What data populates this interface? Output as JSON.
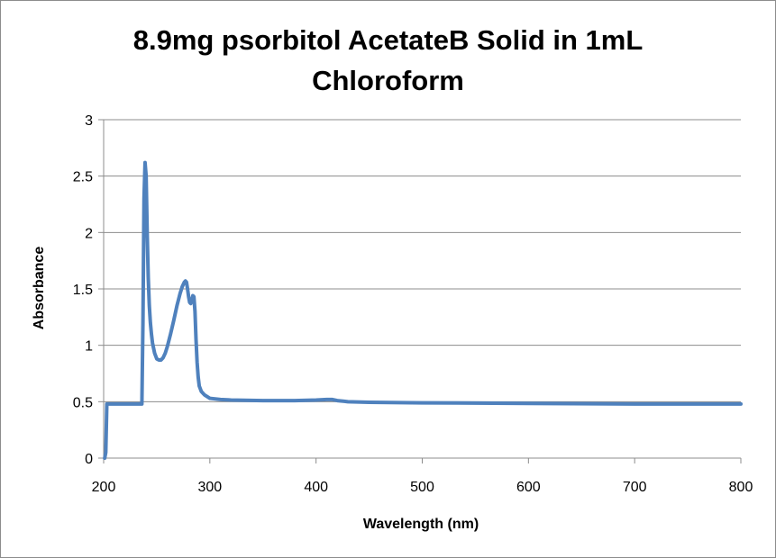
{
  "chart_data": {
    "type": "line",
    "title_line1": "8.9mg psorbitol AcetateB Solid in 1mL",
    "title_line2": "Chloroform",
    "xlabel": "Wavelength (nm)",
    "ylabel": "Absorbance",
    "xlim": [
      200,
      800
    ],
    "ylim": [
      0,
      3
    ],
    "x_ticks": [
      200,
      300,
      400,
      500,
      600,
      700,
      800
    ],
    "y_ticks": [
      0,
      0.5,
      1,
      1.5,
      2,
      2.5,
      3
    ],
    "y_tick_labels": [
      "0",
      "0.5",
      "1",
      "1.5",
      "2",
      "2.5",
      "3"
    ],
    "grid": "horizontal",
    "legend": "none",
    "series_color": "#4f81bd",
    "series": [
      {
        "x": [
          201,
          202,
          203,
          210,
          220,
          230,
          235,
          236,
          237,
          238,
          239,
          240,
          241,
          242,
          243,
          244,
          245,
          246,
          248,
          250,
          252,
          254,
          256,
          258,
          260,
          263,
          266,
          269,
          272,
          274,
          276,
          277,
          278,
          279,
          280,
          281,
          282,
          283,
          284,
          285,
          286,
          287,
          288,
          289,
          290,
          292,
          295,
          300,
          310,
          320,
          350,
          380,
          400,
          410,
          415,
          420,
          430,
          450,
          500,
          600,
          700,
          800
        ],
        "y": [
          0.0,
          0.05,
          0.48,
          0.48,
          0.48,
          0.48,
          0.48,
          0.48,
          1.2,
          2.3,
          2.62,
          2.5,
          2.0,
          1.6,
          1.35,
          1.2,
          1.1,
          1.02,
          0.93,
          0.88,
          0.87,
          0.87,
          0.89,
          0.93,
          0.99,
          1.1,
          1.22,
          1.35,
          1.46,
          1.52,
          1.56,
          1.57,
          1.56,
          1.5,
          1.43,
          1.38,
          1.37,
          1.4,
          1.44,
          1.43,
          1.3,
          1.05,
          0.85,
          0.72,
          0.64,
          0.59,
          0.56,
          0.53,
          0.52,
          0.515,
          0.51,
          0.51,
          0.515,
          0.52,
          0.52,
          0.51,
          0.5,
          0.495,
          0.49,
          0.485,
          0.48,
          0.48
        ]
      }
    ]
  }
}
